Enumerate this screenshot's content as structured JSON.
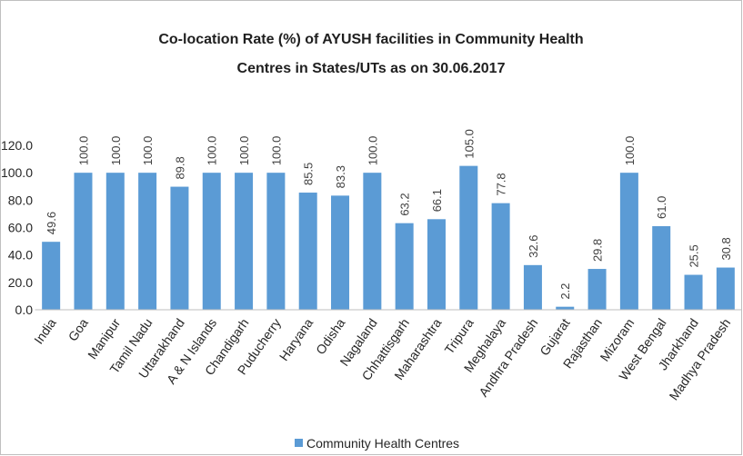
{
  "chart_data": {
    "type": "bar",
    "title": [
      "Co-location Rate (%) of AYUSH facilities in  Community Health",
      "Centres in States/UTs as on 30.06.2017"
    ],
    "categories": [
      "India",
      "Goa",
      "Manipur",
      "Tamil Nadu",
      "Uttarakhand",
      "A & N Islands",
      "Chandigarh",
      "Puducherry",
      "Haryana",
      "Odisha",
      "Nagaland",
      "Chhattisgarh",
      "Maharashtra",
      "Tripura",
      "Meghalaya",
      "Andhra Pradesh",
      "Gujarat",
      "Rajasthan",
      "Mizoram",
      "West Bengal",
      "Jharkhand",
      "Madhya Pradesh"
    ],
    "series": [
      {
        "name": "Community Health Centres",
        "color": "#5b9bd5",
        "values": [
          49.6,
          100,
          100,
          100,
          89.8,
          100,
          100,
          100,
          85.5,
          83.3,
          100,
          63.2,
          66.1,
          105,
          77.8,
          32.6,
          2.2,
          29.8,
          100,
          61,
          25.5,
          30.8
        ],
        "value_labels": [
          "49.6",
          "100.0",
          "100.0",
          "100.0",
          "89.8",
          "100.0",
          "100.0",
          "100.0",
          "85.5",
          "83.3",
          "100.0",
          "63.2",
          "66.1",
          "105.0",
          "77.8",
          "32.6",
          "2.2",
          "29.8",
          "100.0",
          "61.0",
          "25.5",
          "30.8"
        ]
      }
    ],
    "ylim": [
      0,
      120
    ],
    "yticks": [
      {
        "value": 0,
        "label": "0.0"
      },
      {
        "value": 20,
        "label": "20.0"
      },
      {
        "value": 40,
        "label": "40.0"
      },
      {
        "value": 60,
        "label": "60.0"
      },
      {
        "value": 80,
        "label": "80.0"
      },
      {
        "value": 100,
        "label": "100.0"
      },
      {
        "value": 120,
        "label": "120.0"
      }
    ],
    "grid": false,
    "legend": "bottom"
  }
}
